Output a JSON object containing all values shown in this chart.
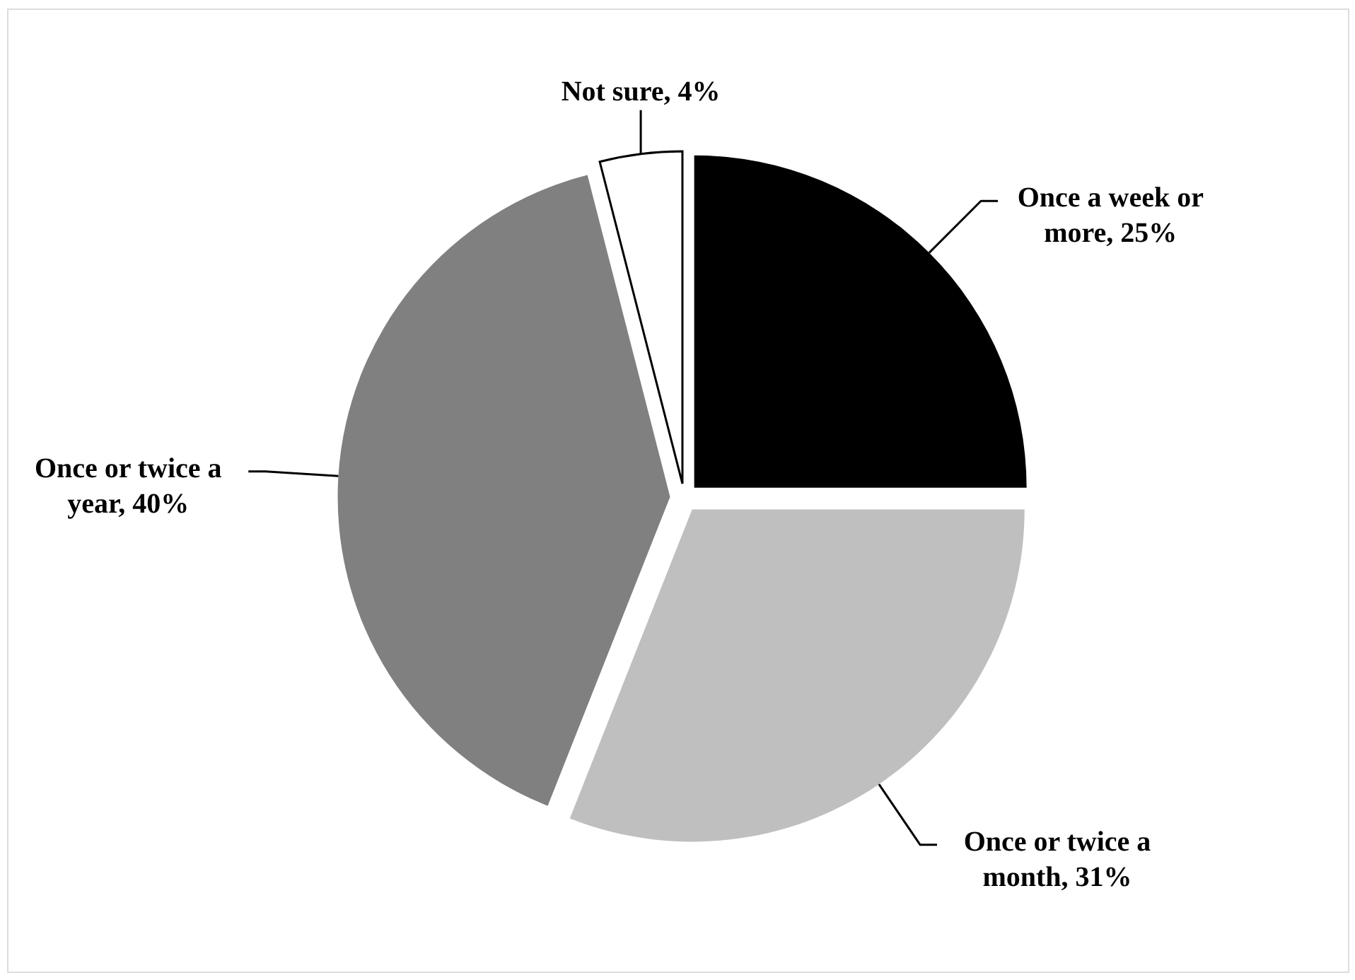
{
  "chart_data": {
    "type": "pie",
    "categories": [
      "Once a week or more",
      "Once or twice a month",
      "Once or twice a year",
      "Not sure"
    ],
    "values": [
      25,
      31,
      40,
      4
    ],
    "colors": [
      "#000000",
      "#bfbfbf",
      "#808080",
      "#ffffff"
    ],
    "value_labels": [
      "25%",
      "31%",
      "40%",
      "4%"
    ]
  }
}
